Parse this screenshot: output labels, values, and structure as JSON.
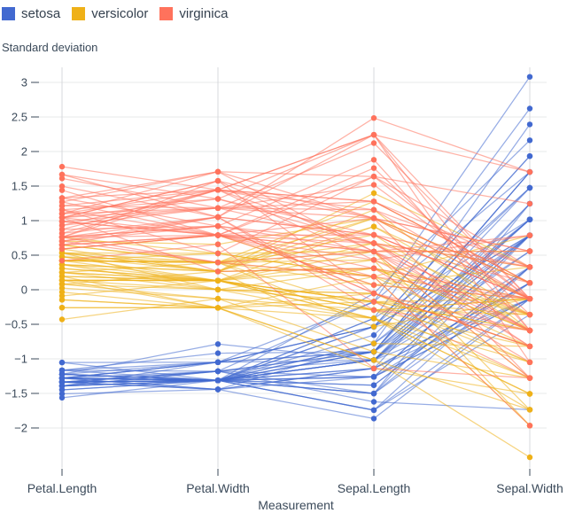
{
  "legend": {
    "position": "top-left",
    "items": [
      {
        "label": "setosa",
        "color": "#4269d0"
      },
      {
        "label": "versicolor",
        "color": "#efb118"
      },
      {
        "label": "virginica",
        "color": "#ff725c"
      }
    ]
  },
  "chart_data": {
    "type": "line",
    "variant": "parallel_coordinates",
    "title": "Standard deviation",
    "ylabel": "Standard deviation",
    "xlabel": "Measurement",
    "categories": [
      "Petal.Length",
      "Petal.Width",
      "Sepal.Length",
      "Sepal.Width"
    ],
    "y_ticks": [
      3,
      2.5,
      2,
      1.5,
      1,
      0.5,
      0,
      -0.5,
      -1,
      -1.5,
      -2
    ],
    "y_tick_labels": [
      "3",
      "2.5",
      "2",
      "1.5",
      "1",
      "0.5",
      "0",
      "−0.5",
      "−1",
      "−1.5",
      "−2"
    ],
    "ylim": [
      -2.6,
      3.15
    ],
    "grid": true,
    "units": "z-score (standard deviations from the mean)",
    "standardization": {
      "means": [
        3.758,
        1.199,
        5.843,
        3.057
      ],
      "sds": [
        1.765,
        0.762,
        0.828,
        0.436
      ]
    },
    "style": {
      "line_opacity": 0.55,
      "line_width": 1.25,
      "dot_radius": 3.2,
      "grid_color": "#e7e8ea",
      "axis_rule_color": "#d7d9dc",
      "text_color": "#3b4a5a"
    },
    "series": [
      {
        "name": "setosa",
        "color": "#4269d0",
        "rows": [
          [
            1.4,
            0.2,
            5.1,
            3.5
          ],
          [
            1.4,
            0.2,
            4.9,
            3.0
          ],
          [
            1.3,
            0.2,
            4.7,
            3.2
          ],
          [
            1.5,
            0.2,
            4.6,
            3.1
          ],
          [
            1.4,
            0.2,
            5.0,
            3.6
          ],
          [
            1.7,
            0.4,
            5.4,
            3.9
          ],
          [
            1.4,
            0.3,
            4.6,
            3.4
          ],
          [
            1.5,
            0.2,
            5.0,
            3.4
          ],
          [
            1.4,
            0.2,
            4.4,
            2.9
          ],
          [
            1.5,
            0.1,
            4.9,
            3.1
          ],
          [
            1.5,
            0.2,
            5.4,
            3.7
          ],
          [
            1.6,
            0.2,
            4.8,
            3.4
          ],
          [
            1.4,
            0.1,
            4.8,
            3.0
          ],
          [
            1.1,
            0.1,
            4.3,
            3.0
          ],
          [
            1.2,
            0.2,
            5.8,
            4.0
          ],
          [
            1.5,
            0.4,
            5.7,
            4.4
          ],
          [
            1.3,
            0.4,
            5.4,
            3.9
          ],
          [
            1.4,
            0.3,
            5.1,
            3.5
          ],
          [
            1.7,
            0.3,
            5.7,
            3.8
          ],
          [
            1.5,
            0.3,
            5.1,
            3.8
          ],
          [
            1.7,
            0.2,
            5.4,
            3.4
          ],
          [
            1.5,
            0.4,
            5.1,
            3.7
          ],
          [
            1.0,
            0.2,
            4.6,
            3.6
          ],
          [
            1.7,
            0.5,
            5.1,
            3.3
          ],
          [
            1.9,
            0.2,
            4.8,
            3.4
          ],
          [
            1.6,
            0.2,
            5.0,
            3.0
          ],
          [
            1.6,
            0.4,
            5.0,
            3.4
          ],
          [
            1.5,
            0.2,
            5.2,
            3.5
          ],
          [
            1.4,
            0.2,
            5.2,
            3.4
          ],
          [
            1.6,
            0.2,
            4.7,
            3.2
          ],
          [
            1.6,
            0.2,
            4.8,
            3.1
          ],
          [
            1.5,
            0.4,
            5.4,
            3.4
          ],
          [
            1.5,
            0.1,
            5.2,
            4.1
          ],
          [
            1.4,
            0.2,
            5.5,
            4.2
          ],
          [
            1.5,
            0.2,
            4.9,
            3.1
          ],
          [
            1.2,
            0.2,
            5.0,
            3.2
          ],
          [
            1.3,
            0.2,
            5.5,
            3.5
          ],
          [
            1.4,
            0.1,
            4.9,
            3.6
          ],
          [
            1.3,
            0.2,
            4.4,
            3.0
          ],
          [
            1.5,
            0.2,
            5.1,
            3.4
          ],
          [
            1.3,
            0.3,
            5.0,
            3.5
          ],
          [
            1.3,
            0.3,
            4.5,
            2.3
          ],
          [
            1.3,
            0.2,
            4.4,
            3.2
          ],
          [
            1.6,
            0.6,
            5.0,
            3.5
          ],
          [
            1.9,
            0.4,
            5.1,
            3.8
          ],
          [
            1.4,
            0.3,
            4.8,
            3.0
          ],
          [
            1.6,
            0.2,
            5.1,
            3.8
          ],
          [
            1.4,
            0.2,
            4.6,
            3.2
          ],
          [
            1.5,
            0.2,
            5.3,
            3.7
          ],
          [
            1.4,
            0.2,
            5.0,
            3.3
          ]
        ]
      },
      {
        "name": "versicolor",
        "color": "#efb118",
        "rows": [
          [
            4.7,
            1.4,
            7.0,
            3.2
          ],
          [
            4.5,
            1.5,
            6.4,
            3.2
          ],
          [
            4.9,
            1.5,
            6.9,
            3.1
          ],
          [
            4.0,
            1.3,
            5.5,
            2.3
          ],
          [
            4.6,
            1.5,
            6.5,
            2.8
          ],
          [
            4.5,
            1.3,
            5.7,
            2.8
          ],
          [
            4.7,
            1.6,
            6.3,
            3.3
          ],
          [
            3.3,
            1.0,
            4.9,
            2.4
          ],
          [
            4.6,
            1.3,
            6.6,
            2.9
          ],
          [
            3.9,
            1.4,
            5.2,
            2.7
          ],
          [
            3.5,
            1.0,
            5.0,
            2.0
          ],
          [
            4.2,
            1.5,
            5.9,
            3.0
          ],
          [
            4.0,
            1.0,
            6.0,
            2.2
          ],
          [
            4.7,
            1.4,
            6.1,
            2.9
          ],
          [
            3.6,
            1.3,
            5.6,
            2.9
          ],
          [
            4.4,
            1.4,
            6.7,
            3.1
          ],
          [
            4.5,
            1.5,
            5.6,
            3.0
          ],
          [
            4.1,
            1.0,
            5.8,
            2.7
          ],
          [
            4.5,
            1.5,
            6.2,
            2.2
          ],
          [
            3.9,
            1.1,
            5.6,
            2.5
          ],
          [
            4.8,
            1.8,
            5.9,
            3.2
          ],
          [
            4.0,
            1.3,
            6.1,
            2.8
          ],
          [
            4.9,
            1.5,
            6.3,
            2.5
          ],
          [
            4.7,
            1.2,
            6.1,
            2.8
          ],
          [
            4.3,
            1.3,
            6.4,
            2.9
          ],
          [
            4.4,
            1.4,
            6.6,
            3.0
          ],
          [
            4.8,
            1.4,
            6.8,
            2.8
          ],
          [
            5.0,
            1.7,
            6.7,
            3.0
          ],
          [
            4.5,
            1.5,
            6.0,
            2.9
          ],
          [
            3.5,
            1.0,
            5.7,
            2.6
          ],
          [
            3.8,
            1.1,
            5.5,
            2.4
          ],
          [
            3.7,
            1.0,
            5.5,
            2.4
          ],
          [
            3.9,
            1.2,
            5.8,
            2.7
          ],
          [
            5.1,
            1.6,
            6.0,
            2.7
          ],
          [
            4.5,
            1.5,
            5.4,
            3.0
          ],
          [
            4.5,
            1.6,
            6.0,
            3.4
          ],
          [
            4.7,
            1.5,
            6.7,
            3.1
          ],
          [
            4.4,
            1.3,
            6.3,
            2.3
          ],
          [
            4.1,
            1.3,
            5.6,
            3.0
          ],
          [
            4.0,
            1.3,
            5.5,
            2.5
          ],
          [
            4.4,
            1.2,
            5.5,
            2.6
          ],
          [
            4.6,
            1.4,
            6.1,
            3.0
          ],
          [
            4.0,
            1.2,
            5.8,
            2.6
          ],
          [
            3.3,
            1.0,
            5.0,
            2.3
          ],
          [
            4.2,
            1.3,
            5.6,
            2.7
          ],
          [
            4.2,
            1.2,
            5.7,
            3.0
          ],
          [
            4.2,
            1.3,
            5.7,
            2.9
          ],
          [
            4.3,
            1.3,
            6.2,
            2.9
          ],
          [
            3.0,
            1.1,
            5.1,
            2.5
          ],
          [
            4.1,
            1.3,
            5.7,
            2.8
          ]
        ]
      },
      {
        "name": "virginica",
        "color": "#ff725c",
        "rows": [
          [
            6.0,
            2.5,
            6.3,
            3.3
          ],
          [
            5.1,
            1.9,
            5.8,
            2.7
          ],
          [
            5.9,
            2.1,
            7.1,
            3.0
          ],
          [
            5.6,
            1.8,
            6.3,
            2.9
          ],
          [
            5.8,
            2.2,
            6.5,
            3.0
          ],
          [
            6.6,
            2.1,
            7.6,
            3.0
          ],
          [
            4.5,
            1.7,
            4.9,
            2.5
          ],
          [
            6.3,
            1.8,
            7.3,
            2.9
          ],
          [
            5.8,
            1.8,
            6.7,
            2.5
          ],
          [
            6.1,
            2.5,
            7.2,
            3.6
          ],
          [
            5.1,
            2.0,
            6.5,
            3.2
          ],
          [
            5.3,
            1.9,
            6.4,
            2.7
          ],
          [
            5.5,
            2.1,
            6.8,
            3.0
          ],
          [
            5.0,
            2.0,
            5.7,
            2.5
          ],
          [
            5.1,
            2.4,
            5.8,
            2.8
          ],
          [
            5.3,
            2.3,
            6.4,
            3.2
          ],
          [
            5.5,
            1.8,
            6.5,
            3.0
          ],
          [
            6.7,
            2.2,
            7.7,
            3.8
          ],
          [
            6.9,
            2.3,
            7.7,
            2.6
          ],
          [
            5.0,
            1.5,
            6.0,
            2.2
          ],
          [
            5.7,
            2.3,
            6.9,
            3.2
          ],
          [
            4.9,
            2.0,
            5.6,
            2.8
          ],
          [
            6.7,
            2.0,
            7.7,
            2.8
          ],
          [
            4.9,
            1.8,
            6.3,
            2.7
          ],
          [
            5.7,
            2.1,
            6.7,
            3.3
          ],
          [
            6.0,
            1.8,
            7.2,
            3.2
          ],
          [
            4.8,
            1.8,
            6.2,
            2.8
          ],
          [
            4.9,
            1.8,
            6.1,
            3.0
          ],
          [
            5.6,
            2.1,
            6.4,
            2.8
          ],
          [
            5.8,
            1.6,
            7.2,
            3.0
          ],
          [
            6.1,
            1.9,
            7.4,
            2.8
          ],
          [
            6.4,
            2.0,
            7.9,
            3.8
          ],
          [
            5.6,
            2.2,
            6.4,
            2.8
          ],
          [
            5.1,
            1.5,
            6.3,
            2.8
          ],
          [
            5.6,
            1.4,
            6.1,
            2.6
          ],
          [
            6.1,
            2.3,
            7.7,
            3.0
          ],
          [
            5.6,
            2.4,
            6.3,
            3.4
          ],
          [
            5.5,
            1.8,
            6.4,
            3.1
          ],
          [
            4.8,
            1.8,
            6.0,
            3.0
          ],
          [
            5.4,
            2.1,
            6.9,
            3.1
          ],
          [
            5.6,
            2.4,
            6.7,
            3.1
          ],
          [
            5.1,
            2.3,
            6.9,
            3.1
          ],
          [
            5.1,
            1.9,
            5.8,
            2.7
          ],
          [
            5.9,
            2.3,
            6.8,
            3.2
          ],
          [
            5.7,
            2.5,
            6.7,
            3.3
          ],
          [
            5.2,
            2.3,
            6.7,
            3.0
          ],
          [
            5.0,
            1.9,
            6.3,
            2.5
          ],
          [
            5.2,
            2.0,
            6.5,
            3.0
          ],
          [
            5.4,
            2.3,
            6.2,
            3.4
          ],
          [
            5.1,
            1.8,
            5.9,
            3.0
          ]
        ]
      }
    ]
  }
}
